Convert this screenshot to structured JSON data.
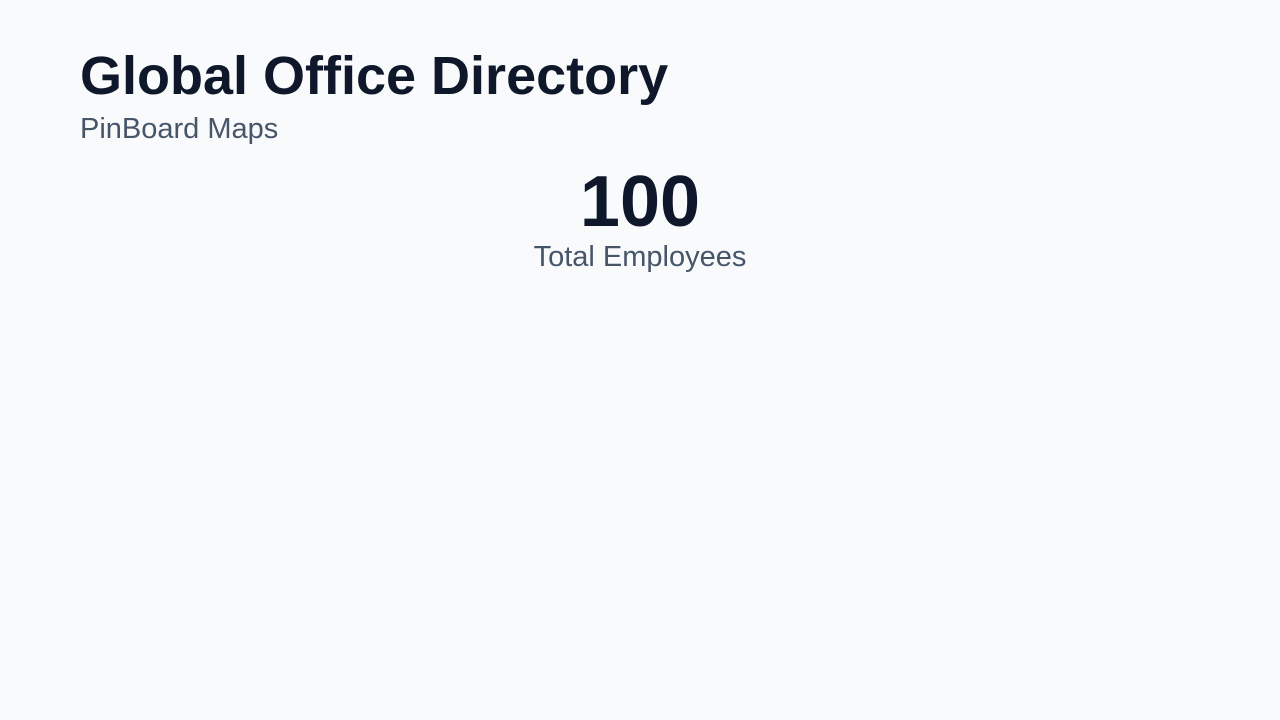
{
  "header": {
    "title": "Global Office Directory",
    "subtitle": "PinBoard Maps"
  },
  "stat": {
    "value": "100",
    "label": "Total Employees"
  }
}
